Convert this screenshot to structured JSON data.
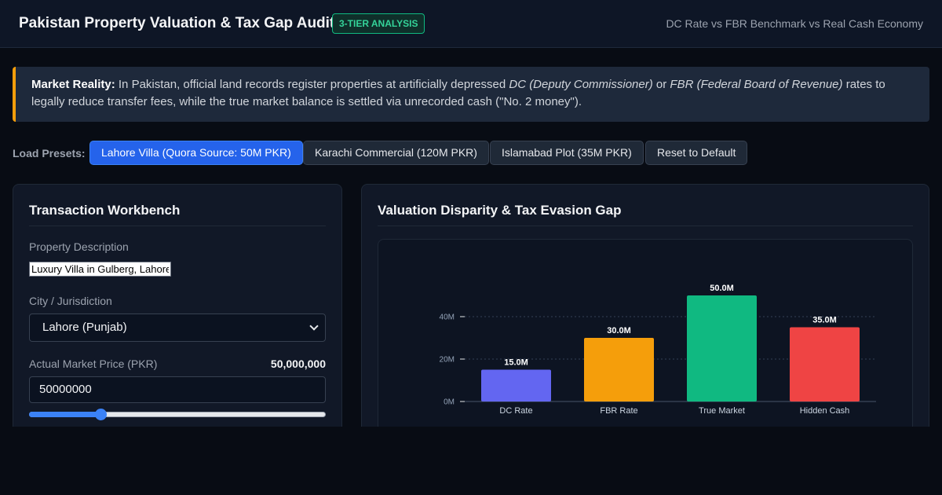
{
  "header": {
    "title": "Pakistan Property Valuation & Tax Gap Auditor",
    "badge": "3-TIER ANALYSIS",
    "subtitle": "DC Rate vs FBR Benchmark vs Real Cash Economy"
  },
  "alert": {
    "lead": "Market Reality:",
    "text1": " In Pakistan, official land records register properties at artificially depressed ",
    "term1": "DC (Deputy Commissioner)",
    "text2": " or ",
    "term2": "FBR (Federal Board of Revenue)",
    "text3": " rates to legally reduce transfer fees, while the true market balance is settled via unrecorded cash (\"No. 2 money\").",
    "accent": "#f59e0b"
  },
  "presets": {
    "label": "Load Presets:",
    "buttons": [
      {
        "label": "Lahore Villa (Quora Source: 50M PKR)",
        "active": true
      },
      {
        "label": "Karachi Commercial (120M PKR)",
        "active": false
      },
      {
        "label": "Islamabad Plot (35M PKR)",
        "active": false
      },
      {
        "label": "Reset to Default",
        "active": false
      }
    ]
  },
  "workbench": {
    "title": "Transaction Workbench",
    "description_label": "Property Description",
    "description_value": "Luxury Villa in Gulberg, Lahore",
    "city_label": "City / Jurisdiction",
    "city_value": "Lahore (Punjab)",
    "price_label": "Actual Market Price (PKR)",
    "price_display": "50,000,000",
    "price_value": "50000000",
    "slider_fraction": 0.24
  },
  "chart_panel": {
    "title": "Valuation Disparity & Tax Evasion Gap"
  },
  "chart_data": {
    "type": "bar",
    "categories": [
      "DC Rate",
      "FBR Rate",
      "True Market",
      "Hidden Cash"
    ],
    "values": [
      15.0,
      30.0,
      50.0,
      35.0
    ],
    "value_labels": [
      "15.0M",
      "30.0M",
      "50.0M",
      "35.0M"
    ],
    "colors": [
      "#6366f1",
      "#f59e0b",
      "#10b981",
      "#ef4444"
    ],
    "y_ticks": [
      0,
      20,
      40
    ],
    "y_tick_labels": [
      "0M",
      "20M",
      "40M"
    ],
    "ylim": [
      0,
      50
    ],
    "grid": true
  }
}
